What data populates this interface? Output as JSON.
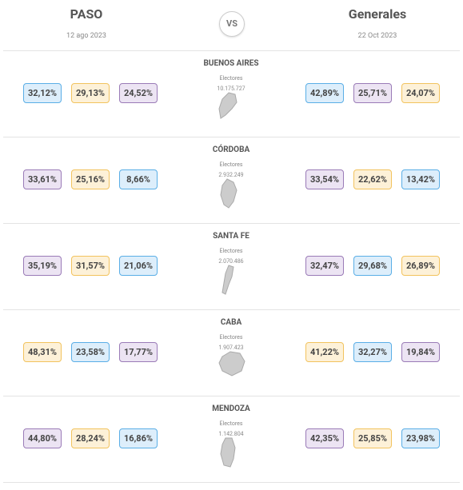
{
  "header": {
    "left": {
      "title": "PASO",
      "date": "12 ago 2023"
    },
    "vs": "VS",
    "right": {
      "title": "Generales",
      "date": "22 Oct 2023"
    }
  },
  "rows": [
    {
      "name": "BUENOS AIRES",
      "electors_label": "Electores",
      "electors": "10.175.727",
      "left": [
        {
          "text": "32,12%",
          "color": "blue"
        },
        {
          "text": "29,13%",
          "color": "yellow"
        },
        {
          "text": "24,52%",
          "color": "purple"
        }
      ],
      "right": [
        {
          "text": "42,89%",
          "color": "blue"
        },
        {
          "text": "25,71%",
          "color": "purple"
        },
        {
          "text": "24,07%",
          "color": "yellow"
        }
      ]
    },
    {
      "name": "CÓRDOBA",
      "electors_label": "Electores",
      "electors": "2.932.249",
      "left": [
        {
          "text": "33,61%",
          "color": "purple"
        },
        {
          "text": "25,16%",
          "color": "yellow"
        },
        {
          "text": "8,66%",
          "color": "blue"
        }
      ],
      "right": [
        {
          "text": "33,54%",
          "color": "purple"
        },
        {
          "text": "22,62%",
          "color": "yellow"
        },
        {
          "text": "13,42%",
          "color": "blue"
        }
      ]
    },
    {
      "name": "SANTA FE",
      "electors_label": "Electores",
      "electors": "2.070.486",
      "left": [
        {
          "text": "35,19%",
          "color": "purple"
        },
        {
          "text": "31,57%",
          "color": "yellow"
        },
        {
          "text": "21,06%",
          "color": "blue"
        }
      ],
      "right": [
        {
          "text": "32,47%",
          "color": "purple"
        },
        {
          "text": "29,68%",
          "color": "blue"
        },
        {
          "text": "26,89%",
          "color": "yellow"
        }
      ]
    },
    {
      "name": "CABA",
      "electors_label": "Electores",
      "electors": "1.907.423",
      "left": [
        {
          "text": "48,31%",
          "color": "yellow"
        },
        {
          "text": "23,58%",
          "color": "blue"
        },
        {
          "text": "17,77%",
          "color": "purple"
        }
      ],
      "right": [
        {
          "text": "41,22%",
          "color": "yellow"
        },
        {
          "text": "32,27%",
          "color": "blue"
        },
        {
          "text": "19,84%",
          "color": "purple"
        }
      ]
    },
    {
      "name": "MENDOZA",
      "electors_label": "Electores",
      "electors": "1.142.804",
      "left": [
        {
          "text": "44,80%",
          "color": "purple"
        },
        {
          "text": "28,24%",
          "color": "yellow"
        },
        {
          "text": "16,86%",
          "color": "blue"
        }
      ],
      "right": [
        {
          "text": "42,35%",
          "color": "purple"
        },
        {
          "text": "25,85%",
          "color": "yellow"
        },
        {
          "text": "23,98%",
          "color": "blue"
        }
      ]
    }
  ]
}
